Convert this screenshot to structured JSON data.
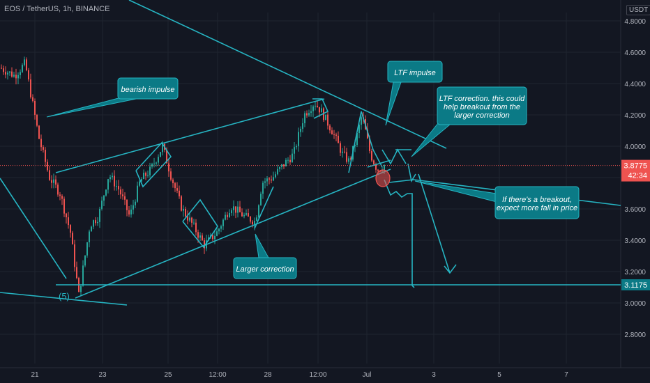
{
  "header": {
    "symbol": "EOS / TetherUS, 1h, BINANCE",
    "currency": "USDT"
  },
  "colors": {
    "background": "#131722",
    "grid": "#1f2430",
    "axis_text": "#b2b5be",
    "up": "#26a69a",
    "down": "#ef5350",
    "drawing": "#26b5c3",
    "callout_fill": "#0b7a86",
    "callout_text": "#ffffff",
    "price_line": "#ef5350",
    "level_tag": "#0b7a86"
  },
  "chart_data": {
    "type": "candlestick",
    "y_axis": {
      "ticks": [
        "4.8000",
        "4.6000",
        "4.4000",
        "4.2000",
        "4.0000",
        "3.8000",
        "3.6000",
        "3.4000",
        "3.2000",
        "3.0000",
        "2.8000"
      ],
      "range": [
        2.7,
        4.87
      ]
    },
    "x_axis": {
      "ticks": [
        "21",
        "23",
        "25",
        "12:00",
        "28",
        "12:00",
        "Jul",
        "3",
        "5",
        "7"
      ]
    },
    "last_price": {
      "value": "3.8775",
      "countdown": "42:34"
    },
    "level": {
      "value": "3.1175"
    },
    "wave_label": "(5)",
    "annotations": [
      {
        "text": "bearish impulse"
      },
      {
        "text": "LTF impulse"
      },
      {
        "text": "LTF correction. this could help breakout from the larger correction"
      },
      {
        "text": "If there's a breakout, expect more fall in price"
      },
      {
        "text": "Larger correction"
      }
    ],
    "price_path": [
      [
        0,
        4.5
      ],
      [
        20,
        4.45
      ],
      [
        35,
        4.53
      ],
      [
        55,
        4.05
      ],
      [
        70,
        3.8
      ],
      [
        85,
        3.7
      ],
      [
        100,
        3.45
      ],
      [
        112,
        3.05
      ],
      [
        128,
        3.5
      ],
      [
        140,
        3.55
      ],
      [
        155,
        3.82
      ],
      [
        170,
        3.72
      ],
      [
        185,
        3.55
      ],
      [
        200,
        3.78
      ],
      [
        215,
        3.85
      ],
      [
        232,
        4.0
      ],
      [
        245,
        3.8
      ],
      [
        260,
        3.6
      ],
      [
        275,
        3.5
      ],
      [
        292,
        3.37
      ],
      [
        310,
        3.45
      ],
      [
        330,
        3.62
      ],
      [
        350,
        3.55
      ],
      [
        365,
        3.52
      ],
      [
        375,
        3.77
      ],
      [
        390,
        3.8
      ],
      [
        405,
        3.88
      ],
      [
        420,
        3.95
      ],
      [
        435,
        4.2
      ],
      [
        450,
        4.28
      ],
      [
        460,
        4.22
      ],
      [
        475,
        4.1
      ],
      [
        490,
        3.95
      ],
      [
        500,
        3.9
      ],
      [
        510,
        4.05
      ],
      [
        518,
        4.2
      ],
      [
        530,
        3.95
      ],
      [
        540,
        3.85
      ],
      [
        550,
        3.88
      ]
    ]
  }
}
